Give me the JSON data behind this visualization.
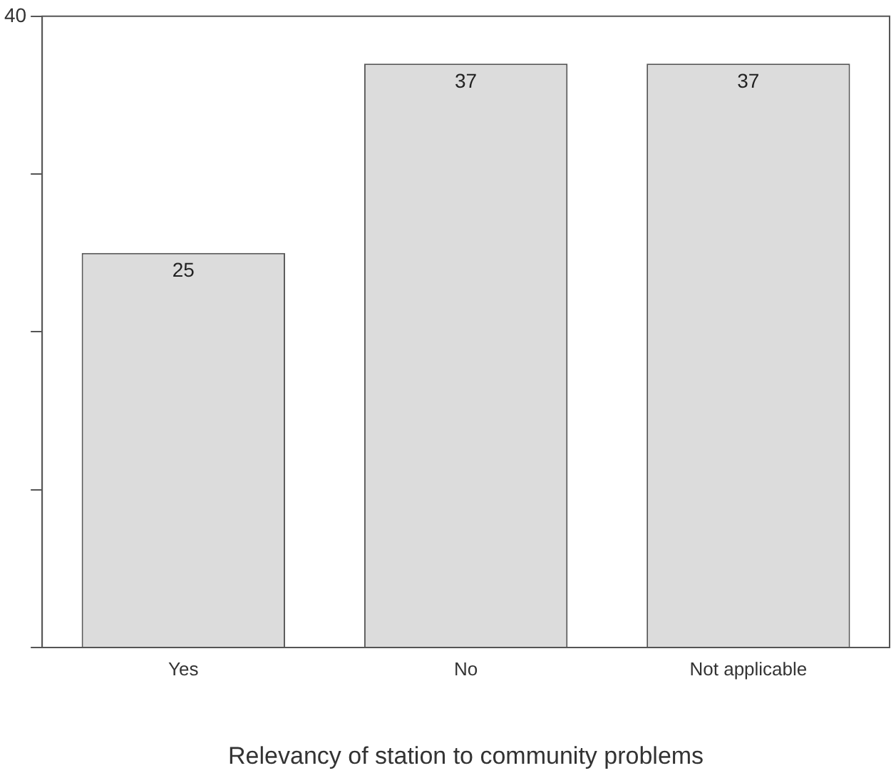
{
  "chart_data": {
    "type": "bar",
    "xlabel": "Relevancy of station to community problems",
    "categories": [
      "Yes",
      "No",
      "Not applicable"
    ],
    "values": [
      25,
      37,
      37
    ],
    "color": "#dcdcdc",
    "ylim": [
      0,
      40
    ],
    "yticks": [
      {
        "value": 0,
        "label": null
      },
      {
        "value": 10,
        "label": null
      },
      {
        "value": 20,
        "label": null
      },
      {
        "value": 30,
        "label": null
      },
      40
    ],
    "data_labels": true,
    "grid": false,
    "legend": false
  }
}
